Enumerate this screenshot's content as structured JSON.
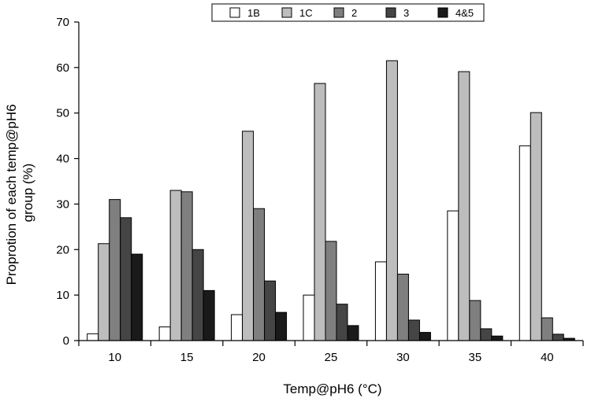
{
  "chart_data": {
    "type": "bar",
    "title": "",
    "xlabel": "Temp@pH6 (°C)",
    "ylabel_lines": [
      "Proprotion of each temp@pH6",
      "group (%)"
    ],
    "categories": [
      "10",
      "15",
      "20",
      "25",
      "30",
      "35",
      "40"
    ],
    "ylim": [
      0,
      70
    ],
    "yticks": [
      0,
      10,
      20,
      30,
      40,
      50,
      60,
      70
    ],
    "legend_position": "top-center",
    "grid": false,
    "series": [
      {
        "name": "1B",
        "color": "#ffffff",
        "values": [
          1.5,
          3.0,
          5.7,
          10.0,
          17.3,
          28.5,
          42.8
        ]
      },
      {
        "name": "1C",
        "color": "#bdbdbd",
        "values": [
          21.3,
          33.0,
          46.0,
          56.5,
          61.5,
          59.1,
          50.1
        ]
      },
      {
        "name": "2",
        "color": "#7f7f7f",
        "values": [
          31.0,
          32.7,
          29.0,
          21.8,
          14.6,
          8.8,
          5.0
        ]
      },
      {
        "name": "3",
        "color": "#454545",
        "values": [
          27.0,
          20.0,
          13.1,
          8.0,
          4.5,
          2.6,
          1.4
        ]
      },
      {
        "name": "4&5",
        "color": "#1a1a1a",
        "values": [
          19.0,
          11.0,
          6.2,
          3.3,
          1.8,
          1.0,
          0.5
        ]
      }
    ]
  }
}
